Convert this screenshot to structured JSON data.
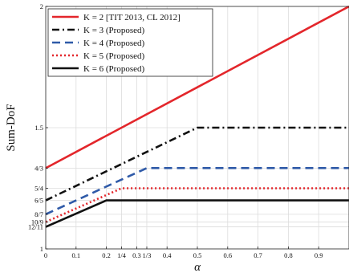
{
  "chart_data": {
    "type": "line",
    "xlabel": "α",
    "ylabel": "Sum-DoF",
    "xlim": [
      0,
      1
    ],
    "ylim": [
      1,
      2
    ],
    "grid": true,
    "legend_position": "top-left",
    "x_ticks": [
      {
        "value": 0,
        "label": "0"
      },
      {
        "value": 0.1,
        "label": "0.1"
      },
      {
        "value": 0.2,
        "label": "0.2"
      },
      {
        "value": 0.25,
        "label": "1/4"
      },
      {
        "value": 0.3,
        "label": "0.3"
      },
      {
        "value": 0.3333,
        "label": "1/3"
      },
      {
        "value": 0.4,
        "label": "0.4"
      },
      {
        "value": 0.5,
        "label": "0.5"
      },
      {
        "value": 0.6,
        "label": "0.6"
      },
      {
        "value": 0.7,
        "label": "0.7"
      },
      {
        "value": 0.8,
        "label": "0.8"
      },
      {
        "value": 0.9,
        "label": "0.9"
      }
    ],
    "y_ticks": [
      {
        "value": 1,
        "label": "1"
      },
      {
        "value": 1.0909,
        "label": "12/11"
      },
      {
        "value": 1.1111,
        "label": "10/9"
      },
      {
        "value": 1.1429,
        "label": "8/7"
      },
      {
        "value": 1.2,
        "label": "6/5"
      },
      {
        "value": 1.25,
        "label": "5/4"
      },
      {
        "value": 1.3333,
        "label": "4/3"
      },
      {
        "value": 1.5,
        "label": "1.5"
      },
      {
        "value": 2,
        "label": "2"
      }
    ],
    "series": [
      {
        "name": "K = 2 [TIT 2013, CL 2012]",
        "color": "#e3262b",
        "dash": "solid",
        "x": [
          0,
          1
        ],
        "y": [
          1.3333,
          2.0
        ]
      },
      {
        "name": "K = 3 (Proposed)",
        "color": "#111111",
        "dash": "dashdot",
        "x": [
          0,
          0.5,
          1
        ],
        "y": [
          1.2,
          1.5,
          1.5
        ]
      },
      {
        "name": "K = 4 (Proposed)",
        "color": "#2f5aa8",
        "dash": "dashed",
        "x": [
          0,
          0.3333,
          1
        ],
        "y": [
          1.1429,
          1.3333,
          1.3333
        ]
      },
      {
        "name": "K = 5 (Proposed)",
        "color": "#e3262b",
        "dash": "dotted",
        "x": [
          0,
          0.25,
          1
        ],
        "y": [
          1.1111,
          1.25,
          1.25
        ]
      },
      {
        "name": "K = 6 (Proposed)",
        "color": "#111111",
        "dash": "solid",
        "x": [
          0,
          0.2,
          1
        ],
        "y": [
          1.0909,
          1.2,
          1.2
        ]
      }
    ]
  }
}
